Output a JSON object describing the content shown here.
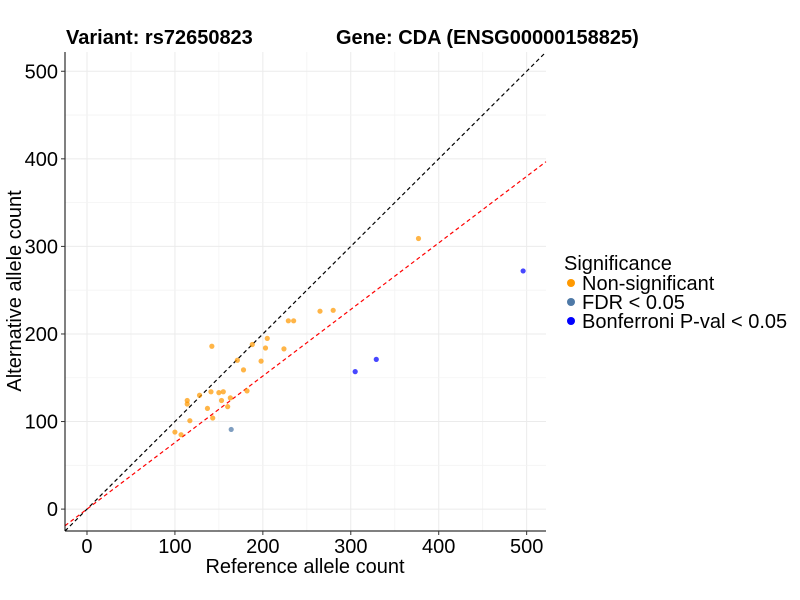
{
  "titles": {
    "variant": "Variant: rs72650823",
    "gene": "Gene: CDA (ENSG00000158825)"
  },
  "chart_data": {
    "type": "scatter",
    "xlabel": "Reference allele count",
    "ylabel": "Alternative allele count",
    "xlim": [
      -25,
      522
    ],
    "ylim": [
      -25,
      522
    ],
    "x_ticks": [
      0,
      100,
      200,
      300,
      400,
      500
    ],
    "y_ticks": [
      0,
      100,
      200,
      300,
      400,
      500
    ],
    "grid": true,
    "legend_position": "right",
    "legend_title": "Significance",
    "reference_lines": [
      {
        "slope": 1.0,
        "intercept": 0,
        "color": "#000000",
        "style": "dashed"
      },
      {
        "slope": 0.76,
        "intercept": 0,
        "color": "#ff0000",
        "style": "dashed"
      }
    ],
    "series": [
      {
        "name": "Non-significant",
        "color": "#ff9900",
        "points": [
          [
            100,
            88
          ],
          [
            107,
            85
          ],
          [
            114,
            120
          ],
          [
            114,
            124
          ],
          [
            117,
            101
          ],
          [
            128,
            130
          ],
          [
            137,
            115
          ],
          [
            141,
            134
          ],
          [
            143,
            104
          ],
          [
            142,
            186
          ],
          [
            150,
            133
          ],
          [
            153,
            124
          ],
          [
            155,
            134
          ],
          [
            160,
            117
          ],
          [
            163,
            127
          ],
          [
            171,
            170
          ],
          [
            178,
            159
          ],
          [
            182,
            135
          ],
          [
            188,
            188
          ],
          [
            198,
            169
          ],
          [
            203,
            184
          ],
          [
            205,
            195
          ],
          [
            224,
            183
          ],
          [
            229,
            215
          ],
          [
            235,
            215
          ],
          [
            265,
            226
          ],
          [
            280,
            227
          ],
          [
            377,
            309
          ]
        ]
      },
      {
        "name": "FDR < 0.05",
        "color": "#4e79a7",
        "points": [
          [
            164,
            91
          ]
        ]
      },
      {
        "name": "Bonferroni P-val < 0.05",
        "color": "#0000ff",
        "points": [
          [
            305,
            157
          ],
          [
            329,
            171
          ],
          [
            496,
            272
          ]
        ]
      }
    ]
  }
}
